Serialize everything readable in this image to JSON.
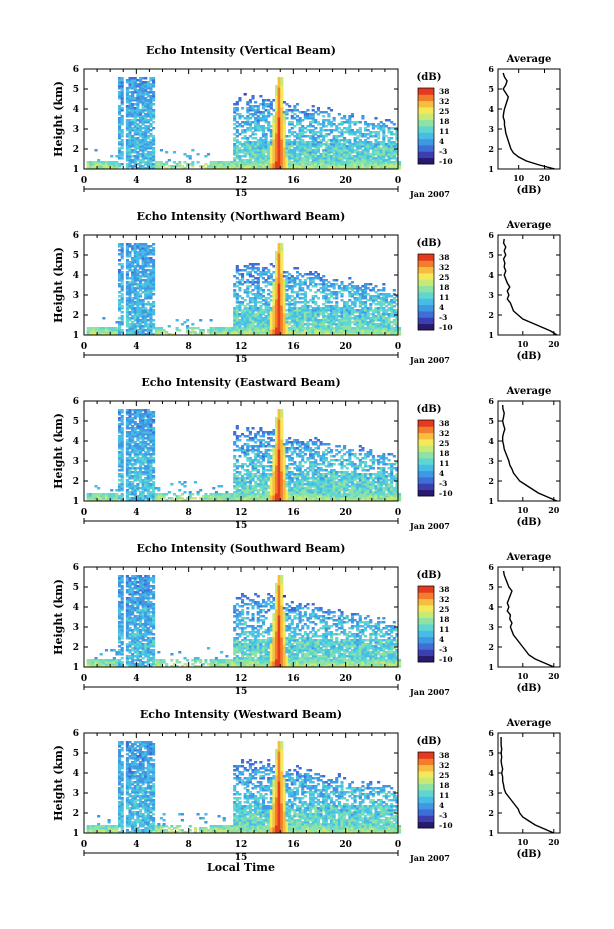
{
  "colors": {
    "colormap": [
      "#2a1a6e",
      "#3b3fb0",
      "#3f6fd6",
      "#3f98e4",
      "#47bde6",
      "#5fd6cf",
      "#8ee2a5",
      "#c6ea74",
      "#f3e95a",
      "#f7bd3f",
      "#f27e2c",
      "#e53a1f"
    ],
    "line": "#000000"
  },
  "common": {
    "xlabel": "Local Time",
    "ylabel": "Height (km)",
    "colorbar_unit": "(dB)",
    "colorbar_ticks": [
      "38",
      "32",
      "25",
      "18",
      "11",
      "4",
      "-3",
      "-10"
    ],
    "x_ticks": [
      "0",
      "4",
      "8",
      "12",
      "16",
      "20",
      "0"
    ],
    "day_label": "15",
    "date_label": "Jan 2007",
    "y_ticks": [
      "1",
      "2",
      "3",
      "4",
      "5",
      "6"
    ],
    "avg_title": "Average",
    "avg_xlabel": "(dB)"
  },
  "panels": [
    {
      "title": "Echo Intensity (Vertical Beam)",
      "show_xlabel": false
    },
    {
      "title": "Echo Intensity (Northward Beam)",
      "show_xlabel": false
    },
    {
      "title": "Echo Intensity (Eastward Beam)",
      "show_xlabel": false
    },
    {
      "title": "Echo Intensity (Southward Beam)",
      "show_xlabel": false
    },
    {
      "title": "Echo Intensity (Westward Beam)",
      "show_xlabel": true
    }
  ],
  "chart_data": [
    {
      "type": "heatmap",
      "title": "Echo Intensity (Vertical Beam)",
      "ylabel": "Height (km)",
      "x_unit": "hour (local time)",
      "xlim": [
        0,
        24
      ],
      "ylim": [
        1,
        6
      ],
      "colorbar": {
        "label": "(dB)",
        "range": [
          -10,
          38
        ]
      },
      "features": [
        {
          "x": [
            2.5,
            5.5
          ],
          "y": [
            1.2,
            5.6
          ],
          "value": 5
        },
        {
          "x": [
            11.5,
            14.5
          ],
          "y": [
            1.2,
            4.8
          ],
          "value": 9
        },
        {
          "x": [
            14.5,
            15.2
          ],
          "y": [
            1.0,
            5.5
          ],
          "value": 38
        },
        {
          "x": [
            15.2,
            24.0
          ],
          "y": [
            1.0,
            4.0
          ],
          "value": 7
        }
      ],
      "average_profile": {
        "title": "Average",
        "xlabel": "(dB)",
        "xticks": [
          "10",
          "20"
        ],
        "xlim": [
          2,
          26
        ],
        "height": [
          1.0,
          1.2,
          1.4,
          1.6,
          1.8,
          2.0,
          2.2,
          2.4,
          2.6,
          2.8,
          3.0,
          3.2,
          3.4,
          3.6,
          3.8,
          4.0,
          4.2,
          4.4,
          4.6,
          4.8,
          5.0,
          5.2,
          5.4,
          5.6,
          5.8
        ],
        "db": [
          24,
          18,
          13,
          10,
          8,
          7,
          6.5,
          6,
          5.5,
          5,
          4.8,
          4.5,
          4.5,
          4,
          4.2,
          4.5,
          5,
          5.5,
          6,
          5,
          4,
          5,
          5.5,
          4.5,
          4
        ]
      }
    },
    {
      "type": "heatmap",
      "title": "Echo Intensity (Northward Beam)",
      "ylabel": "Height (km)",
      "x_unit": "hour (local time)",
      "xlim": [
        0,
        24
      ],
      "ylim": [
        1,
        6
      ],
      "colorbar": {
        "label": "(dB)",
        "range": [
          -10,
          38
        ]
      },
      "features": [
        {
          "x": [
            2.5,
            5.5
          ],
          "y": [
            1.2,
            5.6
          ],
          "value": 5
        },
        {
          "x": [
            11.0,
            14.5
          ],
          "y": [
            1.1,
            5.0
          ],
          "value": 9
        },
        {
          "x": [
            14.5,
            15.2
          ],
          "y": [
            1.0,
            5.6
          ],
          "value": 38
        },
        {
          "x": [
            15.2,
            24.0
          ],
          "y": [
            1.0,
            4.8
          ],
          "value": 7
        }
      ],
      "average_profile": {
        "title": "Average",
        "xlabel": "(dB)",
        "xticks": [
          "10",
          "20"
        ],
        "xlim": [
          2,
          22
        ],
        "height": [
          1.0,
          1.2,
          1.4,
          1.6,
          1.8,
          2.0,
          2.2,
          2.4,
          2.6,
          2.8,
          3.0,
          3.2,
          3.4,
          3.6,
          3.8,
          4.0,
          4.2,
          4.4,
          4.6,
          4.8,
          5.0,
          5.2,
          5.4,
          5.6,
          5.8
        ],
        "db": [
          21,
          19,
          16,
          13,
          10,
          8.5,
          7,
          6.5,
          6,
          5,
          5.5,
          5,
          5.8,
          5,
          4.5,
          4,
          4.5,
          4,
          4.2,
          3.8,
          4.5,
          4,
          4.5,
          3.8,
          4
        ]
      }
    },
    {
      "type": "heatmap",
      "title": "Echo Intensity (Eastward Beam)",
      "ylabel": "Height (km)",
      "x_unit": "hour (local time)",
      "xlim": [
        0,
        24
      ],
      "ylim": [
        1,
        6
      ],
      "colorbar": {
        "label": "(dB)",
        "range": [
          -10,
          38
        ]
      },
      "features": [
        {
          "x": [
            2.5,
            5.5
          ],
          "y": [
            1.1,
            5.6
          ],
          "value": 5
        },
        {
          "x": [
            11.0,
            14.5
          ],
          "y": [
            1.1,
            5.0
          ],
          "value": 9
        },
        {
          "x": [
            14.5,
            15.2
          ],
          "y": [
            1.0,
            5.5
          ],
          "value": 38
        },
        {
          "x": [
            15.2,
            24.0
          ],
          "y": [
            1.0,
            4.0
          ],
          "value": 7
        }
      ],
      "average_profile": {
        "title": "Average",
        "xlabel": "(dB)",
        "xticks": [
          "10",
          "20"
        ],
        "xlim": [
          2,
          22
        ],
        "height": [
          1.0,
          1.2,
          1.4,
          1.6,
          1.8,
          2.0,
          2.2,
          2.4,
          2.6,
          2.8,
          3.0,
          3.2,
          3.4,
          3.6,
          3.8,
          4.0,
          4.2,
          4.4,
          4.6,
          4.8,
          5.0,
          5.2,
          5.4,
          5.6,
          5.8
        ],
        "db": [
          21,
          18,
          15,
          13,
          11,
          9,
          8,
          7,
          6.5,
          5.8,
          5.5,
          5,
          4.5,
          4,
          3.8,
          3.5,
          3.5,
          3.8,
          4.2,
          3.8,
          3.5,
          3.8,
          4,
          3.6,
          3.5
        ]
      }
    },
    {
      "type": "heatmap",
      "title": "Echo Intensity (Southward Beam)",
      "ylabel": "Height (km)",
      "x_unit": "hour (local time)",
      "xlim": [
        0,
        24
      ],
      "ylim": [
        1,
        6
      ],
      "colorbar": {
        "label": "(dB)",
        "range": [
          -10,
          38
        ]
      },
      "features": [
        {
          "x": [
            2.5,
            5.5
          ],
          "y": [
            1.1,
            5.8
          ],
          "value": 5
        },
        {
          "x": [
            11.0,
            14.5
          ],
          "y": [
            1.1,
            5.2
          ],
          "value": 9
        },
        {
          "x": [
            14.5,
            15.2
          ],
          "y": [
            1.0,
            5.8
          ],
          "value": 38
        },
        {
          "x": [
            15.2,
            24.0
          ],
          "y": [
            1.0,
            4.8
          ],
          "value": 7
        }
      ],
      "average_profile": {
        "title": "Average",
        "xlabel": "(dB)",
        "xticks": [
          "10",
          "20"
        ],
        "xlim": [
          2,
          22
        ],
        "height": [
          1.0,
          1.2,
          1.4,
          1.6,
          1.8,
          2.0,
          2.2,
          2.4,
          2.6,
          2.8,
          3.0,
          3.2,
          3.4,
          3.6,
          3.8,
          4.0,
          4.2,
          4.4,
          4.6,
          4.8,
          5.0,
          5.2,
          5.4,
          5.6,
          5.8
        ],
        "db": [
          20,
          17,
          14,
          12,
          11,
          10,
          9,
          8,
          7,
          6.5,
          6,
          6.5,
          5.8,
          6,
          5,
          5.5,
          5,
          5.5,
          6,
          6.5,
          5.5,
          5,
          4.5,
          4,
          3.8
        ]
      }
    },
    {
      "type": "heatmap",
      "title": "Echo Intensity (Westward Beam)",
      "ylabel": "Height (km)",
      "xlabel": "Local Time",
      "x_unit": "hour (local time)",
      "xlim": [
        0,
        24
      ],
      "ylim": [
        1,
        6
      ],
      "colorbar": {
        "label": "(dB)",
        "range": [
          -10,
          38
        ]
      },
      "features": [
        {
          "x": [
            2.5,
            5.5
          ],
          "y": [
            1.1,
            5.6
          ],
          "value": 5
        },
        {
          "x": [
            11.0,
            14.5
          ],
          "y": [
            1.1,
            5.0
          ],
          "value": 9
        },
        {
          "x": [
            14.5,
            15.2
          ],
          "y": [
            1.0,
            5.6
          ],
          "value": 38
        },
        {
          "x": [
            15.2,
            24.0
          ],
          "y": [
            1.0,
            4.2
          ],
          "value": 7
        }
      ],
      "average_profile": {
        "title": "Average",
        "xlabel": "(dB)",
        "xticks": [
          "10",
          "20"
        ],
        "xlim": [
          2,
          22
        ],
        "height": [
          1.0,
          1.2,
          1.4,
          1.6,
          1.8,
          2.0,
          2.2,
          2.4,
          2.6,
          2.8,
          3.0,
          3.2,
          3.4,
          3.6,
          3.8,
          4.0,
          4.2,
          4.4,
          4.6,
          4.8,
          5.0,
          5.2,
          5.4,
          5.6,
          5.8
        ],
        "db": [
          20,
          17,
          14,
          12,
          10,
          9,
          8.5,
          7.5,
          6.5,
          5.5,
          4.5,
          4,
          3.8,
          3.5,
          3.5,
          3.2,
          3.5,
          3.2,
          3,
          3.2,
          3,
          3.2,
          3,
          3,
          3
        ]
      }
    }
  ]
}
